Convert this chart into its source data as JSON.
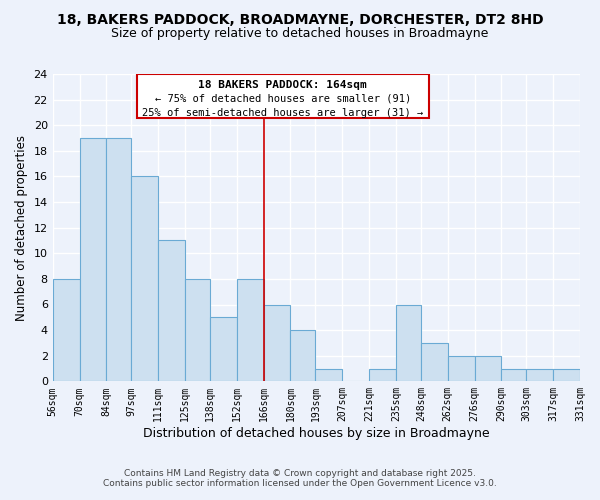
{
  "title": "18, BAKERS PADDOCK, BROADMAYNE, DORCHESTER, DT2 8HD",
  "subtitle": "Size of property relative to detached houses in Broadmayne",
  "xlabel": "Distribution of detached houses by size in Broadmayne",
  "ylabel": "Number of detached properties",
  "bin_edges": [
    56,
    70,
    84,
    97,
    111,
    125,
    138,
    152,
    166,
    180,
    193,
    207,
    221,
    235,
    248,
    262,
    276,
    290,
    303,
    317,
    331
  ],
  "bin_labels": [
    "56sqm",
    "70sqm",
    "84sqm",
    "97sqm",
    "111sqm",
    "125sqm",
    "138sqm",
    "152sqm",
    "166sqm",
    "180sqm",
    "193sqm",
    "207sqm",
    "221sqm",
    "235sqm",
    "248sqm",
    "262sqm",
    "276sqm",
    "290sqm",
    "303sqm",
    "317sqm",
    "331sqm"
  ],
  "counts": [
    8,
    19,
    19,
    16,
    11,
    8,
    5,
    8,
    6,
    4,
    1,
    0,
    1,
    6,
    3,
    2,
    2,
    1,
    1,
    1
  ],
  "bar_color": "#cde0f0",
  "bar_edge_color": "#6aaad4",
  "vline_x": 166,
  "vline_color": "#cc0000",
  "annotation_title": "18 BAKERS PADDOCK: 164sqm",
  "annotation_line1": "← 75% of detached houses are smaller (91)",
  "annotation_line2": "25% of semi-detached houses are larger (31) →",
  "annotation_box_color": "#ffffff",
  "annotation_box_edge": "#cc0000",
  "ylim": [
    0,
    24
  ],
  "yticks": [
    0,
    2,
    4,
    6,
    8,
    10,
    12,
    14,
    16,
    18,
    20,
    22,
    24
  ],
  "background_color": "#edf2fb",
  "grid_color": "#ffffff",
  "footer1": "Contains HM Land Registry data © Crown copyright and database right 2025.",
  "footer2": "Contains public sector information licensed under the Open Government Licence v3.0.",
  "title_fontsize": 10,
  "subtitle_fontsize": 9,
  "xlabel_fontsize": 9,
  "ylabel_fontsize": 8.5,
  "footer_fontsize": 6.5
}
